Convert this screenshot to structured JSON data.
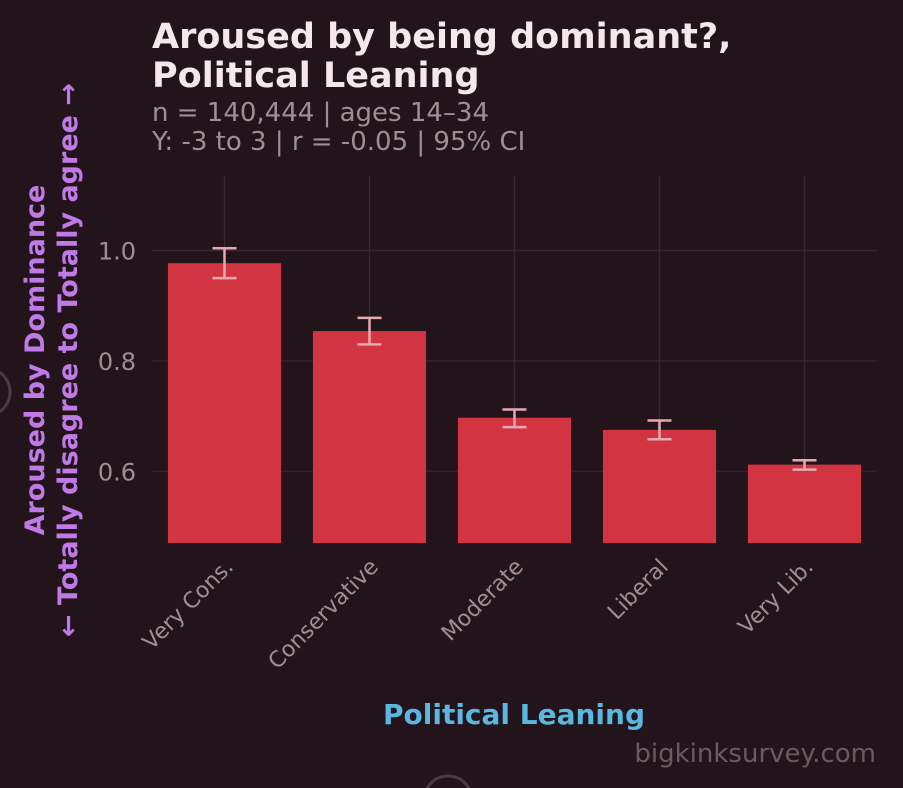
{
  "chart_data": {
    "type": "bar",
    "title_line1": "Aroused by being dominant?,",
    "title_line2": "Political Leaning",
    "subtitle_line1": "n = 140,444  |  ages 14–34",
    "subtitle_line2": "Y: -3 to 3  |  r = -0.05  |  95% CI",
    "categories": [
      "Very Cons.",
      "Conservative",
      "Moderate",
      "Liberal",
      "Very Lib."
    ],
    "values": [
      0.977,
      0.854,
      0.697,
      0.675,
      0.612
    ],
    "ci_low": [
      0.95,
      0.83,
      0.68,
      0.658,
      0.603
    ],
    "ci_high": [
      1.004,
      0.878,
      0.712,
      0.692,
      0.62
    ],
    "xlabel": "Political Leaning",
    "ylabel_line1": "Aroused by Dominance",
    "ylabel_line2": "← Totally disagree to Totally agree →",
    "yticks": [
      "0.6",
      "0.8",
      "1.0"
    ],
    "ytick_values": [
      0.6,
      0.8,
      1.0
    ],
    "ylim": [
      0.47,
      1.135
    ],
    "grid": true,
    "watermark": "bigkinksurvey.com",
    "colors": {
      "background": "#23141b",
      "bar": "#d33441",
      "errorbar": "#e7a9b1",
      "title": "#f5e8ec",
      "xlabel": "#5ab7e0",
      "ylabel": "#c07ae8"
    }
  }
}
